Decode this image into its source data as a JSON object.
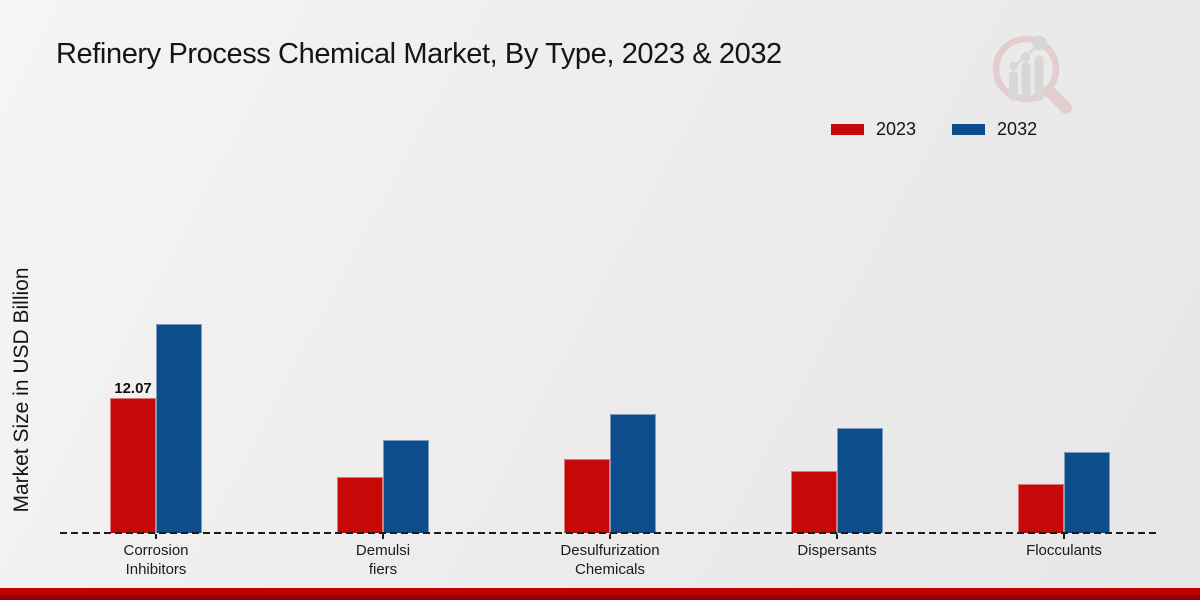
{
  "title": "Refinery Process Chemical Market, By Type, 2023 & 2032",
  "y_axis_label": "Market Size in USD Billion",
  "legend": {
    "items": [
      "2023",
      "2032"
    ]
  },
  "colors": {
    "series_2023": "#c60808",
    "series_2032": "#0e4d8c",
    "footer_top": "#c10100",
    "footer_bottom": "#8e0000",
    "watermark_pink": "#dcb3b6",
    "watermark_gray": "#c5c6ca"
  },
  "chart_data": {
    "type": "bar",
    "categories": [
      "Corrosion\nInhibitors",
      "Demulsi\nfiers",
      "Desulfurization\nChemicals",
      "Dispersants",
      "Flocculants"
    ],
    "series": [
      {
        "name": "2023",
        "color": "#c60808",
        "values": [
          12.07,
          5.0,
          6.55,
          5.51,
          4.38
        ]
      },
      {
        "name": "2032",
        "color": "#0e4d8c",
        "values": [
          18.65,
          8.24,
          10.64,
          9.31,
          7.19
        ]
      }
    ],
    "data_labels": [
      {
        "series_index": 0,
        "category_index": 0,
        "text": "12.07"
      }
    ],
    "title": "Refinery Process Chemical Market, By Type, 2023 & 2032",
    "xlabel": "",
    "ylabel": "Market Size in USD Billion",
    "ylim": [
      0,
      20
    ],
    "grid": false,
    "baseline_style": "dashed",
    "legend_position": "top-right"
  }
}
